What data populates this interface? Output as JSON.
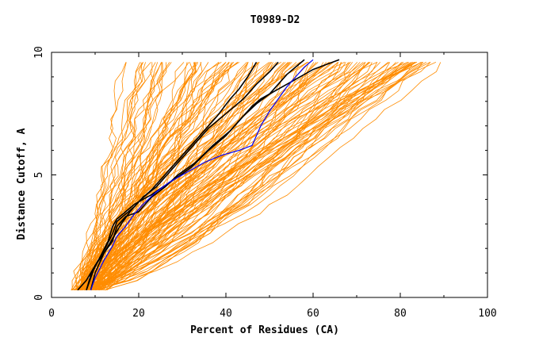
{
  "chart_data": {
    "type": "line",
    "title": "T0989-D2",
    "xlabel": "Percent of Residues (CA)",
    "ylabel": "Distance Cutoff, A",
    "xlim": [
      0,
      100
    ],
    "ylim": [
      0,
      10
    ],
    "xticks": [
      "0",
      "20",
      "40",
      "60",
      "80",
      "100"
    ],
    "yticks": [
      "0",
      "5",
      "10"
    ],
    "grid": false,
    "colors": {
      "background": "#ffffff",
      "axis": "#000000",
      "orange": "#ff8c00",
      "black": "#000000",
      "blue": "#0000ff"
    },
    "background_curve_count": 140,
    "series": [
      {
        "color": "#000000",
        "points": [
          [
            8,
            0.3
          ],
          [
            9,
            0.8
          ],
          [
            10,
            1.3
          ],
          [
            12,
            1.9
          ],
          [
            14,
            2.6
          ],
          [
            15,
            3.1
          ],
          [
            17,
            3.4
          ],
          [
            19,
            3.7
          ],
          [
            21,
            4.1
          ],
          [
            24,
            4.5
          ],
          [
            27,
            5.1
          ],
          [
            30,
            5.7
          ],
          [
            33,
            6.3
          ],
          [
            36,
            6.9
          ],
          [
            40,
            7.5
          ],
          [
            44,
            8.1
          ],
          [
            47,
            8.7
          ],
          [
            50,
            9.2
          ],
          [
            52,
            9.6
          ]
        ]
      },
      {
        "color": "#000000",
        "points": [
          [
            9,
            0.3
          ],
          [
            10,
            1.0
          ],
          [
            12,
            1.8
          ],
          [
            14,
            2.4
          ],
          [
            16,
            3.0
          ],
          [
            18,
            3.5
          ],
          [
            20,
            3.9
          ],
          [
            23,
            4.4
          ],
          [
            26,
            5.0
          ],
          [
            30,
            5.8
          ],
          [
            34,
            6.6
          ],
          [
            38,
            7.4
          ],
          [
            41,
            8.1
          ],
          [
            43,
            8.5
          ],
          [
            45,
            9.0
          ],
          [
            46,
            9.3
          ],
          [
            47,
            9.6
          ]
        ]
      },
      {
        "color": "#000000",
        "points": [
          [
            8,
            0.3
          ],
          [
            9,
            0.9
          ],
          [
            11,
            1.6
          ],
          [
            13,
            2.3
          ],
          [
            14,
            2.9
          ],
          [
            15,
            3.2
          ],
          [
            17,
            3.5
          ],
          [
            19,
            3.8
          ],
          [
            23,
            4.2
          ],
          [
            28,
            4.8
          ],
          [
            32,
            5.3
          ],
          [
            36,
            6.0
          ],
          [
            40,
            6.6
          ],
          [
            43,
            7.2
          ],
          [
            46,
            7.8
          ],
          [
            48,
            8.1
          ],
          [
            51,
            8.4
          ],
          [
            54,
            8.7
          ],
          [
            57,
            9.0
          ],
          [
            60,
            9.3
          ],
          [
            63,
            9.5
          ],
          [
            66,
            9.7
          ]
        ]
      },
      {
        "color": "#000000",
        "points": [
          [
            6,
            0.3
          ],
          [
            8,
            0.7
          ],
          [
            10,
            1.3
          ],
          [
            12,
            1.8
          ],
          [
            14,
            2.3
          ],
          [
            15,
            2.9
          ],
          [
            17,
            3.3
          ],
          [
            20,
            3.5
          ],
          [
            23,
            4.1
          ],
          [
            26,
            4.5
          ],
          [
            29,
            5.0
          ],
          [
            33,
            5.5
          ],
          [
            37,
            6.2
          ],
          [
            41,
            6.8
          ],
          [
            44,
            7.4
          ],
          [
            47,
            7.9
          ],
          [
            50,
            8.3
          ],
          [
            52,
            8.7
          ],
          [
            54,
            9.1
          ],
          [
            56,
            9.4
          ],
          [
            58,
            9.7
          ]
        ]
      },
      {
        "color": "#0000ff",
        "points": [
          [
            9,
            0.3
          ],
          [
            10,
            0.8
          ],
          [
            12,
            1.5
          ],
          [
            14,
            2.1
          ],
          [
            15,
            2.5
          ],
          [
            17,
            2.9
          ],
          [
            19,
            3.4
          ],
          [
            21,
            3.8
          ],
          [
            24,
            4.3
          ],
          [
            27,
            4.7
          ],
          [
            31,
            5.1
          ],
          [
            35,
            5.5
          ],
          [
            39,
            5.8
          ],
          [
            43,
            6.0
          ],
          [
            46,
            6.2
          ],
          [
            47,
            6.6
          ],
          [
            48,
            7.0
          ],
          [
            50,
            7.6
          ],
          [
            52,
            8.1
          ],
          [
            54,
            8.6
          ],
          [
            56,
            9.0
          ],
          [
            58,
            9.4
          ],
          [
            60,
            9.7
          ]
        ]
      }
    ]
  }
}
